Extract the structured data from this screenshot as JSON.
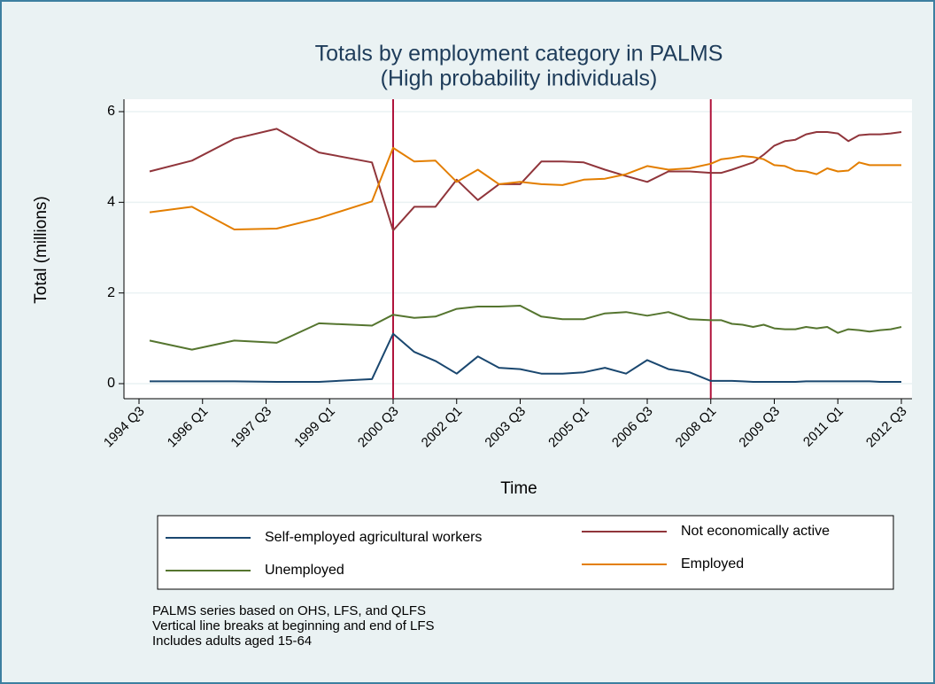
{
  "chart_data": {
    "type": "line",
    "title": "Totals by employment category in PALMS",
    "subtitle": "(High probability individuals)",
    "x_label": "Time",
    "y_label": "Total (millions)",
    "x": [
      "1994 Q4",
      "1995 Q4",
      "1996 Q4",
      "1997 Q4",
      "1998 Q4",
      "2000 Q1",
      "2000 Q3",
      "2001 Q1",
      "2001 Q3",
      "2002 Q1",
      "2002 Q3",
      "2003 Q1",
      "2003 Q3",
      "2004 Q1",
      "2004 Q3",
      "2005 Q1",
      "2005 Q3",
      "2006 Q1",
      "2006 Q3",
      "2007 Q1",
      "2007 Q3",
      "2008 Q1",
      "2008 Q2",
      "2008 Q3",
      "2008 Q4",
      "2009 Q1",
      "2009 Q2",
      "2009 Q3",
      "2009 Q4",
      "2010 Q1",
      "2010 Q2",
      "2010 Q3",
      "2010 Q4",
      "2011 Q1",
      "2011 Q2",
      "2011 Q3",
      "2011 Q4",
      "2012 Q1",
      "2012 Q2",
      "2012 Q3"
    ],
    "series": [
      {
        "name": "Self-employed agricultural workers",
        "color": "#1a476f",
        "values": [
          0.05,
          0.05,
          0.05,
          0.04,
          0.04,
          0.1,
          1.1,
          0.7,
          0.5,
          0.22,
          0.6,
          0.35,
          0.32,
          0.22,
          0.22,
          0.25,
          0.35,
          0.22,
          0.52,
          0.32,
          0.25,
          0.06,
          0.06,
          0.06,
          0.05,
          0.04,
          0.04,
          0.04,
          0.04,
          0.04,
          0.05,
          0.05,
          0.05,
          0.05,
          0.05,
          0.05,
          0.05,
          0.04,
          0.04,
          0.04
        ]
      },
      {
        "name": "Not economically active",
        "color": "#90353b",
        "values": [
          4.68,
          4.92,
          5.4,
          5.62,
          5.1,
          4.88,
          3.38,
          3.9,
          3.9,
          4.5,
          4.05,
          4.4,
          4.4,
          4.9,
          4.9,
          4.88,
          4.72,
          4.58,
          4.45,
          4.68,
          4.68,
          4.65,
          4.65,
          4.72,
          4.8,
          4.88,
          5.05,
          5.25,
          5.35,
          5.38,
          5.5,
          5.55,
          5.55,
          5.52,
          5.35,
          5.48,
          5.5,
          5.5,
          5.52,
          5.55
        ]
      },
      {
        "name": "Unemployed",
        "color": "#55752f",
        "values": [
          0.95,
          0.75,
          0.95,
          0.9,
          1.33,
          1.28,
          1.52,
          1.45,
          1.48,
          1.65,
          1.7,
          1.7,
          1.72,
          1.48,
          1.42,
          1.42,
          1.55,
          1.58,
          1.5,
          1.58,
          1.42,
          1.4,
          1.4,
          1.32,
          1.3,
          1.25,
          1.3,
          1.22,
          1.2,
          1.2,
          1.25,
          1.22,
          1.25,
          1.12,
          1.2,
          1.18,
          1.15,
          1.18,
          1.2,
          1.25
        ]
      },
      {
        "name": "Employed",
        "color": "#e37e00",
        "values": [
          3.78,
          3.9,
          3.4,
          3.42,
          3.65,
          4.02,
          5.2,
          4.9,
          4.92,
          4.45,
          4.72,
          4.4,
          4.45,
          4.4,
          4.38,
          4.5,
          4.52,
          4.62,
          4.8,
          4.72,
          4.75,
          4.85,
          4.95,
          4.98,
          5.02,
          5.0,
          4.95,
          4.82,
          4.8,
          4.7,
          4.68,
          4.62,
          4.75,
          4.68,
          4.7,
          4.88,
          4.82,
          4.82,
          4.82,
          4.82
        ]
      }
    ],
    "xlim": [
      "1994 Q3",
      "2012 Q3"
    ],
    "xticks": [
      "1994 Q3",
      "1996 Q1",
      "1997 Q3",
      "1999 Q1",
      "2000 Q3",
      "2002 Q1",
      "2003 Q3",
      "2005 Q1",
      "2006 Q3",
      "2008 Q1",
      "2009 Q3",
      "2011 Q1",
      "2012 Q3"
    ],
    "ylim": [
      0,
      6
    ],
    "yticks": [
      0,
      2,
      4,
      6
    ],
    "grid": true,
    "vlines": [
      "2000 Q3",
      "2008 Q1"
    ],
    "vline_color": "#b0143c",
    "legend": "bottom",
    "notes": [
      "PALMS series based on OHS, LFS, and QLFS",
      "Vertical line breaks at beginning and end of LFS",
      "Includes adults aged 15-64"
    ]
  }
}
